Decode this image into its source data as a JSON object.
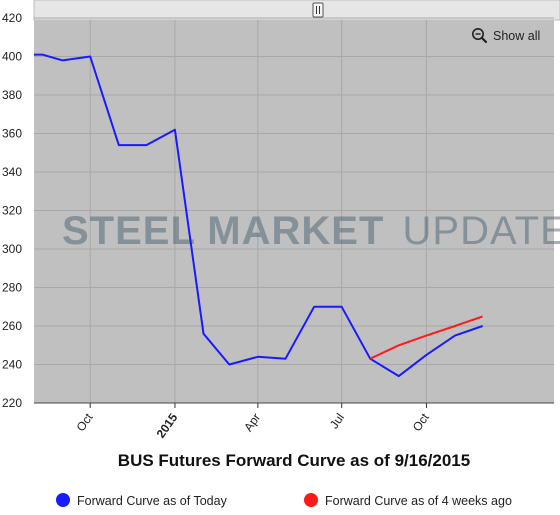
{
  "chart_data": {
    "type": "line",
    "title": "BUS Futures Forward Curve as of 9/16/2015",
    "watermark": {
      "brand_bold": "STEEL MARKET",
      "brand_light": "UPDATE"
    },
    "ylim": [
      220,
      420
    ],
    "yticks": [
      220,
      240,
      260,
      280,
      300,
      320,
      340,
      360,
      380,
      400,
      420
    ],
    "xlim": [
      "2014-08-01",
      "2015-11-01"
    ],
    "xticks": [
      {
        "date": "2014-10-01",
        "label": "Oct",
        "major": false
      },
      {
        "date": "2015-01-01",
        "label": "2015",
        "major": true
      },
      {
        "date": "2015-04-01",
        "label": "Apr",
        "major": false
      },
      {
        "date": "2015-07-01",
        "label": "Jul",
        "major": false
      },
      {
        "date": "2015-10-01",
        "label": "Oct",
        "major": false
      }
    ],
    "grid": true,
    "legend_position": "bottom",
    "series": [
      {
        "name": "Forward Curve as of Today",
        "color": "#1a1aff",
        "points": [
          {
            "x": "2014-08-01",
            "y": 401
          },
          {
            "x": "2014-08-10",
            "y": 401
          },
          {
            "x": "2014-09-01",
            "y": 398
          },
          {
            "x": "2014-10-01",
            "y": 400
          },
          {
            "x": "2014-11-01",
            "y": 354
          },
          {
            "x": "2014-12-01",
            "y": 354
          },
          {
            "x": "2015-01-01",
            "y": 362
          },
          {
            "x": "2015-02-01",
            "y": 256
          },
          {
            "x": "2015-03-01",
            "y": 240
          },
          {
            "x": "2015-04-01",
            "y": 244
          },
          {
            "x": "2015-05-01",
            "y": 243
          },
          {
            "x": "2015-06-01",
            "y": 270
          },
          {
            "x": "2015-07-01",
            "y": 270
          },
          {
            "x": "2015-08-01",
            "y": 243
          },
          {
            "x": "2015-09-01",
            "y": 234
          },
          {
            "x": "2015-10-01",
            "y": 245
          },
          {
            "x": "2015-11-01",
            "y": 255
          },
          {
            "x": "2015-12-01",
            "y": 260
          }
        ]
      },
      {
        "name": "Forward Curve as of 4 weeks ago",
        "color": "#ff1a1a",
        "points": [
          {
            "x": "2015-08-01",
            "y": 243
          },
          {
            "x": "2015-09-01",
            "y": 250
          },
          {
            "x": "2015-10-01",
            "y": 255
          },
          {
            "x": "2015-11-01",
            "y": 260
          },
          {
            "x": "2015-12-01",
            "y": 265
          }
        ]
      }
    ]
  },
  "toolbar": {
    "show_all_label": "Show all",
    "zoom_icon": "zoom-out-magnifier-icon"
  },
  "navigator": {
    "handle_icon": "drag-handle-icon"
  },
  "colors": {
    "plot_background": "#c0c0c0",
    "grid": "#a8a8a8",
    "navigator": "#e6e6e6"
  }
}
